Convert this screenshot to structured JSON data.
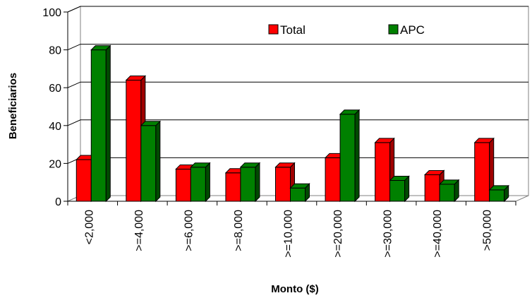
{
  "chart_data": {
    "type": "bar",
    "categories": [
      "<2,000",
      ">=4,000",
      ">=6,000",
      ">=8,000",
      ">=10,000",
      ">=20,000",
      ">=30,000",
      ">=40,000",
      ">50,000"
    ],
    "series": [
      {
        "name": "Total",
        "values": [
          22,
          64,
          17,
          15,
          18,
          23,
          31,
          14,
          31
        ],
        "color": "#ff0000",
        "shade": "#a00000"
      },
      {
        "name": "APC",
        "values": [
          80,
          40,
          18,
          18,
          7,
          46,
          11,
          9,
          6
        ],
        "color": "#008000",
        "shade": "#004a00"
      }
    ],
    "xlabel": "Monto ($)",
    "ylabel": "Beneficiarios",
    "ylim": [
      0,
      100
    ],
    "yticks": [
      0,
      20,
      40,
      60,
      80,
      100
    ],
    "grid": true,
    "legend_position": "top-right",
    "three_d": true
  }
}
